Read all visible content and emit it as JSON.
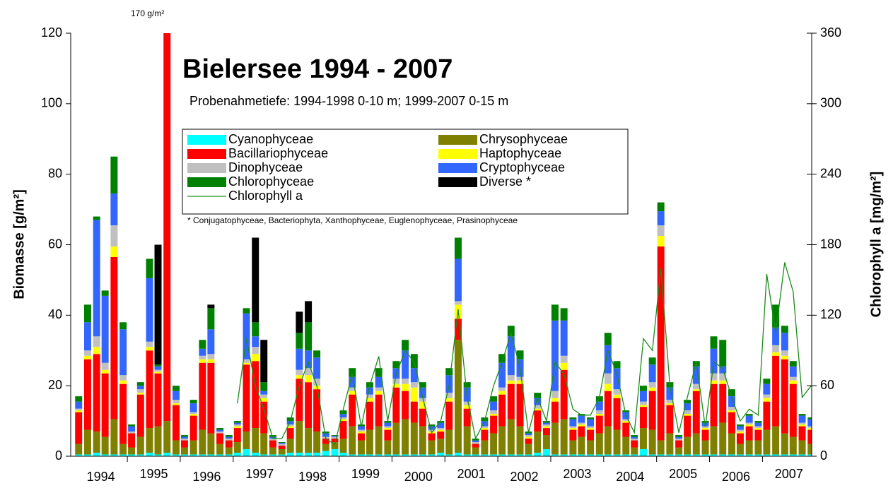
{
  "chart_data": {
    "type": "stacked_bar",
    "title": "Bielersee 1994 - 2007",
    "subtitle": "Probenahmetiefe: 1994-1998 0-10 m; 1999-2007 0-15 m",
    "annotation": "170 g/m²",
    "footnote": "* Conjugatophyceae, Bacteriophyta, Xanthophyceae, Euglenophyceae, Prasinophyceae",
    "ylabel": "Biomasse [g/m²]",
    "y2label": "Chlorophyll a [mg/m²]",
    "xlim": [
      1993.93,
      2007.93
    ],
    "xticks": [
      1995,
      1996,
      1997,
      1998,
      1999,
      2000,
      2001,
      2002,
      2003,
      2004,
      2005,
      2006,
      2007
    ],
    "year_labels": [
      {
        "value": 1994.5,
        "label": "1994"
      },
      {
        "value": 1995.5,
        "label": "1995"
      },
      {
        "value": 1996.5,
        "label": "1996"
      },
      {
        "value": 1997.5,
        "label": "1997"
      },
      {
        "value": 1998.5,
        "label": "1998"
      },
      {
        "value": 1999.5,
        "label": "1999"
      },
      {
        "value": 2000.5,
        "label": "2000"
      },
      {
        "value": 2001.5,
        "label": "2001"
      },
      {
        "value": 2002.5,
        "label": "2002"
      },
      {
        "value": 2003.5,
        "label": "2003"
      },
      {
        "value": 2004.5,
        "label": "2004"
      },
      {
        "value": 2005.5,
        "label": "2005"
      },
      {
        "value": 2006.5,
        "label": "2006"
      },
      {
        "value": 2007.5,
        "label": "2007"
      }
    ],
    "ylim": [
      0,
      120
    ],
    "yticks": [
      0,
      20,
      40,
      60,
      80,
      100,
      120
    ],
    "y2lim": [
      0,
      360
    ],
    "y2ticks": [
      0,
      60,
      120,
      180,
      240,
      300,
      360
    ],
    "x": [
      1994.08,
      1994.25,
      1994.42,
      1994.58,
      1994.75,
      1994.92,
      1995.08,
      1995.25,
      1995.42,
      1995.58,
      1995.75,
      1995.92,
      1996.08,
      1996.25,
      1996.42,
      1996.58,
      1996.75,
      1996.92,
      1997.08,
      1997.25,
      1997.42,
      1997.58,
      1997.75,
      1997.92,
      1998.08,
      1998.25,
      1998.42,
      1998.58,
      1998.75,
      1998.92,
      1999.08,
      1999.25,
      1999.42,
      1999.58,
      1999.75,
      1999.92,
      2000.08,
      2000.25,
      2000.42,
      2000.58,
      2000.75,
      2000.92,
      2001.08,
      2001.25,
      2001.42,
      2001.58,
      2001.75,
      2001.92,
      2002.08,
      2002.25,
      2002.42,
      2002.58,
      2002.75,
      2002.92,
      2003.08,
      2003.25,
      2003.42,
      2003.58,
      2003.75,
      2003.92,
      2004.08,
      2004.25,
      2004.42,
      2004.58,
      2004.75,
      2004.92,
      2005.08,
      2005.25,
      2005.42,
      2005.58,
      2005.75,
      2005.92,
      2006.08,
      2006.25,
      2006.42,
      2006.58,
      2006.75,
      2006.92,
      2007.08,
      2007.25,
      2007.42,
      2007.58,
      2007.75,
      2007.92
    ],
    "series": [
      {
        "name": "Cyanophyceae",
        "color": "#00ffff",
        "values": [
          0.5,
          0.5,
          1,
          0.5,
          0.5,
          0.5,
          0.5,
          0.5,
          1,
          0.5,
          1,
          0.5,
          0.5,
          0.5,
          0.5,
          0.5,
          0.5,
          0.5,
          1,
          2,
          1,
          0.5,
          0.5,
          0.5,
          1,
          1,
          1,
          1,
          1.5,
          2,
          1,
          0.5,
          0.5,
          0.5,
          0.5,
          0.5,
          0.5,
          0.5,
          0.5,
          0.5,
          0.5,
          1,
          0.5,
          1,
          0.5,
          0.5,
          0.5,
          0.5,
          0.5,
          0.5,
          0.5,
          0.5,
          1,
          2,
          0.5,
          0.5,
          0.5,
          0.5,
          0.5,
          0.5,
          0.5,
          0.5,
          0.5,
          0.5,
          2,
          0.5,
          0.5,
          0.5,
          0.5,
          0.5,
          0.5,
          0.5,
          0.5,
          0.5,
          0.5,
          0.5,
          0.5,
          0.5,
          0.5,
          0.5,
          0.5,
          0.5,
          0.5,
          0.5
        ]
      },
      {
        "name": "Chrysophyceae",
        "color": "#808000",
        "values": [
          3,
          7,
          6,
          5,
          10,
          3,
          2,
          5,
          7,
          8,
          9,
          4,
          2,
          4,
          7,
          6,
          3,
          2,
          3,
          5,
          7,
          6,
          2,
          1.5,
          4,
          9,
          7,
          6,
          2,
          2,
          4,
          8,
          4,
          7,
          8,
          4,
          9,
          10,
          9,
          8,
          4,
          4,
          7,
          32,
          8,
          2,
          4,
          6,
          8,
          10,
          8,
          3,
          6,
          4,
          9,
          10,
          4,
          5,
          4,
          6,
          8,
          7,
          5,
          2,
          6,
          7,
          4,
          6,
          2,
          5,
          6,
          4,
          8,
          9,
          6,
          3,
          4,
          4,
          7,
          8,
          6,
          5,
          4,
          3
        ]
      },
      {
        "name": "Bacillariophyceae",
        "color": "#ff0000",
        "values": [
          9,
          20,
          22,
          18,
          46,
          17,
          4,
          12,
          22,
          15,
          140,
          10,
          2,
          7,
          19,
          20,
          3,
          2,
          4,
          19,
          19,
          9,
          2,
          1,
          3,
          12,
          13,
          12,
          1.5,
          1,
          5,
          9,
          2,
          8,
          9,
          3,
          10,
          8,
          6,
          5,
          2,
          2,
          8,
          6,
          5,
          1,
          3,
          5,
          9,
          10,
          12,
          1.5,
          6,
          2,
          6,
          14,
          3,
          3,
          3,
          5,
          10,
          9,
          4,
          2,
          6,
          11,
          55,
          8,
          2,
          6,
          12,
          3,
          12,
          11,
          6,
          3,
          4,
          3,
          8,
          20,
          21,
          15,
          4,
          4
        ]
      },
      {
        "name": "Haptophyceae",
        "color": "#ffff00",
        "values": [
          0.5,
          1,
          2,
          1,
          3,
          1,
          0,
          0.5,
          1,
          0.5,
          0.5,
          0.5,
          0,
          0.5,
          1,
          1,
          0,
          0,
          0.5,
          0.5,
          2,
          1,
          0,
          0,
          0.5,
          1,
          2,
          1,
          0,
          0,
          0.5,
          1,
          0.5,
          1,
          1,
          0.5,
          1,
          2,
          4,
          2,
          0.5,
          0.5,
          1,
          4,
          1,
          0,
          0.5,
          0.5,
          1,
          1,
          1,
          0.5,
          0.5,
          0.5,
          1,
          2,
          0.5,
          0.5,
          0.5,
          0.5,
          2,
          1,
          0.5,
          0,
          0.5,
          1,
          3,
          0.5,
          0,
          0.5,
          0.5,
          0.5,
          1,
          1,
          0.5,
          0.5,
          0.5,
          0.5,
          1,
          1,
          1,
          1,
          0.5,
          0.5
        ]
      },
      {
        "name": "Dinophyceae",
        "color": "#c0c0c0",
        "values": [
          0.5,
          1.5,
          3,
          2,
          6,
          1.5,
          0.5,
          1,
          1.5,
          0.5,
          4,
          1,
          0.5,
          0.5,
          1,
          1.5,
          0.5,
          0.5,
          0.5,
          1,
          2,
          1,
          0.5,
          0.5,
          0.5,
          1.5,
          2,
          2,
          0.5,
          0.5,
          0.5,
          1,
          0.5,
          1,
          1,
          0.5,
          1.5,
          1.5,
          1.5,
          1,
          0.5,
          0.5,
          1.5,
          1,
          1,
          0.5,
          0.5,
          1,
          1,
          1.5,
          1,
          0.5,
          1,
          0.5,
          2,
          2,
          0.5,
          0.5,
          0.5,
          1,
          3,
          1.5,
          0.5,
          0.5,
          1,
          1.5,
          3,
          1,
          0.5,
          1,
          1.5,
          0.5,
          2,
          2,
          1,
          0.5,
          0.5,
          0.5,
          1,
          2,
          1.5,
          1,
          0.5,
          0.5
        ]
      },
      {
        "name": "Cryptophyceae",
        "color": "#3366ff",
        "values": [
          2,
          8,
          33,
          19,
          9,
          13,
          1.5,
          1,
          18,
          1,
          6,
          2.5,
          0.5,
          2.5,
          2,
          7,
          0.5,
          0.5,
          0.5,
          13,
          3,
          1,
          0.5,
          0.3,
          1,
          6,
          5,
          6,
          1,
          0.3,
          1,
          3,
          1,
          2,
          3,
          1,
          3,
          8,
          4,
          3,
          1,
          1.5,
          5,
          12,
          4,
          0.5,
          1.5,
          2.5,
          7,
          11,
          5,
          0.5,
          2,
          0.5,
          20,
          10,
          2,
          2,
          2,
          2.5,
          8,
          6,
          2,
          0.5,
          3,
          5,
          4,
          3.5,
          0.5,
          2,
          5,
          1,
          7,
          2,
          3,
          1,
          2,
          1,
          3,
          5,
          5,
          3,
          2,
          2
        ]
      },
      {
        "name": "Chlorophyceae",
        "color": "#008000",
        "values": [
          1.5,
          5,
          1,
          1.5,
          10.5,
          2,
          0.5,
          1,
          5.5,
          0.5,
          9.5,
          1.5,
          0.5,
          1,
          2.5,
          6,
          0.5,
          0.5,
          0.5,
          1.5,
          4,
          2.5,
          0.5,
          0.2,
          1,
          4.5,
          8,
          2,
          0.5,
          0.2,
          1,
          2.5,
          0.5,
          1.5,
          2.5,
          0.5,
          2,
          3,
          4,
          1.5,
          0.5,
          0.5,
          2,
          6,
          1.5,
          0.5,
          1,
          1.5,
          2.5,
          3,
          2.5,
          0.5,
          1.5,
          0.5,
          4.5,
          3.5,
          0.5,
          0.5,
          0.5,
          1.5,
          3.5,
          2,
          0.5,
          0.5,
          1.5,
          2,
          2.5,
          1.5,
          0.5,
          1,
          1.5,
          0.5,
          3.5,
          7.5,
          2,
          0.5,
          0.5,
          0.5,
          1.5,
          6.5,
          2,
          1.5,
          0.5,
          0.5
        ]
      },
      {
        "name": "Diverse *",
        "color": "#000000",
        "values": [
          0,
          0,
          0,
          0,
          0,
          0,
          0,
          0,
          0,
          34,
          0,
          0,
          0,
          0,
          0,
          1,
          0,
          0,
          0,
          0,
          24,
          12,
          0,
          0,
          0,
          6,
          6,
          0,
          0,
          0,
          0,
          0,
          0,
          0,
          0,
          0,
          0,
          0,
          0,
          0,
          0,
          0,
          0,
          0,
          0,
          0,
          0,
          0,
          0,
          0,
          0,
          0,
          0,
          0,
          0,
          0,
          0,
          0,
          0,
          0,
          0,
          0,
          0,
          0,
          0,
          0,
          0,
          0,
          0,
          0,
          0,
          0,
          0,
          0,
          0,
          0,
          0,
          0,
          0,
          0,
          0,
          0,
          0,
          0
        ]
      },
      {
        "name": "Chlorophyll a",
        "color": "#1a8c1a",
        "axis": "y2",
        "type": "line",
        "values": [
          null,
          null,
          null,
          null,
          null,
          null,
          null,
          null,
          null,
          null,
          null,
          null,
          null,
          null,
          null,
          null,
          null,
          null,
          45,
          100,
          60,
          40,
          15,
          15,
          30,
          60,
          80,
          60,
          15,
          10,
          40,
          70,
          25,
          60,
          85,
          30,
          70,
          90,
          80,
          50,
          20,
          30,
          60,
          125,
          50,
          15,
          30,
          60,
          80,
          105,
          75,
          20,
          50,
          30,
          80,
          70,
          40,
          35,
          35,
          50,
          90,
          70,
          35,
          20,
          100,
          90,
          160,
          60,
          20,
          50,
          80,
          25,
          80,
          75,
          50,
          30,
          40,
          35,
          155,
          105,
          165,
          140,
          50,
          60
        ]
      }
    ]
  }
}
